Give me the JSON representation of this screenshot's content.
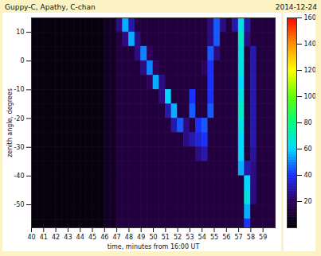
{
  "chart_data": {
    "type": "heatmap",
    "title": "Guppy-C, Apathy, C-chan",
    "subtitle": "2014-12-24",
    "x_label": "time, minutes from 16:00 UT",
    "y_label": "zenith angle, degrees",
    "x": [
      40,
      40.5,
      41,
      41.5,
      42,
      42.5,
      43,
      43.5,
      44,
      44.5,
      45,
      45.5,
      46,
      46.5,
      47,
      47.5,
      48,
      48.5,
      49,
      49.5,
      50,
      50.5,
      51,
      51.5,
      52,
      52.5,
      53,
      53.5,
      54,
      54.5,
      55,
      55.5,
      56,
      56.5,
      57,
      57.5,
      58,
      58.5,
      59,
      59.5,
      60
    ],
    "y": [
      15,
      10,
      5,
      0,
      -5,
      -10,
      -15,
      -20,
      -25,
      -30,
      -35,
      -40,
      -45,
      -50,
      -55,
      -60
    ],
    "z": [
      [
        3,
        3,
        3,
        3,
        3,
        3,
        3,
        3,
        3,
        3,
        3,
        3,
        8,
        8,
        25,
        55,
        30,
        14,
        14,
        14,
        14,
        14,
        14,
        14,
        14,
        14,
        14,
        14,
        14,
        25,
        45,
        25,
        14,
        30,
        65,
        30,
        14,
        14,
        14,
        14
      ],
      [
        3,
        3,
        3,
        3,
        3,
        3,
        3,
        3,
        3,
        3,
        3,
        3,
        8,
        8,
        14,
        25,
        55,
        25,
        14,
        14,
        14,
        14,
        14,
        14,
        14,
        14,
        14,
        14,
        14,
        25,
        45,
        14,
        14,
        14,
        70,
        25,
        14,
        14,
        14,
        14
      ],
      [
        3,
        3,
        3,
        3,
        3,
        3,
        3,
        3,
        3,
        3,
        3,
        3,
        8,
        8,
        14,
        14,
        14,
        25,
        50,
        20,
        14,
        14,
        14,
        14,
        14,
        14,
        14,
        14,
        14,
        45,
        25,
        14,
        14,
        14,
        65,
        14,
        30,
        14,
        14,
        14
      ],
      [
        3,
        3,
        3,
        3,
        3,
        3,
        3,
        3,
        3,
        3,
        3,
        3,
        8,
        8,
        14,
        14,
        14,
        14,
        25,
        50,
        20,
        14,
        14,
        14,
        14,
        14,
        14,
        14,
        20,
        40,
        14,
        14,
        14,
        14,
        65,
        14,
        30,
        14,
        14,
        14
      ],
      [
        3,
        3,
        3,
        3,
        3,
        3,
        3,
        3,
        3,
        3,
        3,
        3,
        8,
        8,
        14,
        14,
        14,
        14,
        14,
        20,
        55,
        25,
        14,
        14,
        14,
        14,
        14,
        14,
        14,
        40,
        14,
        14,
        14,
        14,
        60,
        14,
        30,
        14,
        14,
        14
      ],
      [
        3,
        3,
        3,
        3,
        3,
        3,
        3,
        3,
        3,
        3,
        3,
        3,
        8,
        8,
        14,
        14,
        14,
        14,
        14,
        14,
        14,
        25,
        60,
        14,
        14,
        14,
        40,
        14,
        14,
        40,
        14,
        14,
        14,
        14,
        65,
        14,
        30,
        14,
        14,
        14
      ],
      [
        3,
        3,
        3,
        3,
        3,
        3,
        3,
        3,
        3,
        3,
        3,
        3,
        8,
        8,
        14,
        14,
        14,
        14,
        14,
        14,
        14,
        14,
        30,
        55,
        14,
        14,
        45,
        14,
        14,
        45,
        14,
        14,
        14,
        14,
        70,
        14,
        30,
        14,
        14,
        14
      ],
      [
        3,
        3,
        3,
        3,
        3,
        3,
        3,
        3,
        3,
        3,
        3,
        3,
        8,
        8,
        14,
        14,
        14,
        14,
        14,
        14,
        14,
        14,
        14,
        30,
        45,
        25,
        14,
        40,
        45,
        14,
        14,
        14,
        14,
        14,
        65,
        14,
        30,
        14,
        14,
        14
      ],
      [
        3,
        3,
        3,
        3,
        3,
        3,
        3,
        3,
        3,
        3,
        3,
        3,
        8,
        8,
        14,
        14,
        14,
        14,
        14,
        14,
        14,
        14,
        14,
        14,
        14,
        25,
        30,
        35,
        40,
        14,
        14,
        14,
        14,
        14,
        60,
        14,
        30,
        14,
        14,
        14
      ],
      [
        3,
        3,
        3,
        3,
        3,
        3,
        3,
        3,
        3,
        3,
        3,
        3,
        8,
        8,
        14,
        14,
        14,
        14,
        14,
        14,
        14,
        14,
        14,
        14,
        14,
        14,
        14,
        25,
        30,
        14,
        14,
        14,
        14,
        14,
        60,
        14,
        28,
        14,
        14,
        14
      ],
      [
        3,
        3,
        3,
        3,
        3,
        3,
        3,
        3,
        3,
        3,
        3,
        3,
        8,
        8,
        14,
        14,
        14,
        14,
        14,
        14,
        14,
        14,
        14,
        14,
        14,
        14,
        14,
        14,
        14,
        14,
        14,
        14,
        14,
        14,
        55,
        30,
        25,
        14,
        14,
        14
      ],
      [
        3,
        3,
        3,
        3,
        3,
        3,
        3,
        3,
        3,
        3,
        3,
        3,
        8,
        8,
        14,
        14,
        14,
        14,
        14,
        14,
        14,
        14,
        14,
        14,
        14,
        14,
        14,
        14,
        14,
        14,
        14,
        14,
        14,
        14,
        14,
        60,
        25,
        14,
        14,
        14
      ],
      [
        3,
        3,
        3,
        3,
        3,
        3,
        3,
        3,
        3,
        3,
        3,
        3,
        8,
        8,
        14,
        14,
        14,
        14,
        14,
        14,
        14,
        14,
        14,
        14,
        14,
        14,
        14,
        14,
        14,
        14,
        14,
        14,
        14,
        14,
        14,
        65,
        25,
        14,
        14,
        14
      ],
      [
        3,
        3,
        3,
        3,
        3,
        3,
        3,
        3,
        3,
        3,
        3,
        3,
        8,
        8,
        14,
        14,
        14,
        14,
        14,
        14,
        14,
        14,
        14,
        14,
        14,
        14,
        14,
        14,
        14,
        14,
        14,
        14,
        14,
        14,
        14,
        55,
        14,
        14,
        14,
        14
      ],
      [
        3,
        3,
        3,
        3,
        3,
        3,
        3,
        3,
        3,
        3,
        3,
        3,
        8,
        8,
        14,
        14,
        14,
        14,
        14,
        14,
        14,
        14,
        14,
        14,
        14,
        14,
        14,
        14,
        14,
        14,
        14,
        14,
        14,
        14,
        14,
        40,
        14,
        14,
        14,
        14
      ]
    ],
    "xlim": [
      40,
      60
    ],
    "ylim": [
      -58,
      15
    ],
    "xticks": [
      40,
      41,
      42,
      43,
      44,
      45,
      46,
      47,
      48,
      49,
      50,
      51,
      52,
      53,
      54,
      55,
      56,
      57,
      58,
      59
    ],
    "yticks": [
      10,
      0,
      -10,
      -20,
      -30,
      -40,
      -50
    ],
    "zlim": [
      0,
      160
    ],
    "zticks": [
      20,
      40,
      60,
      80,
      100,
      120,
      140,
      160
    ]
  }
}
